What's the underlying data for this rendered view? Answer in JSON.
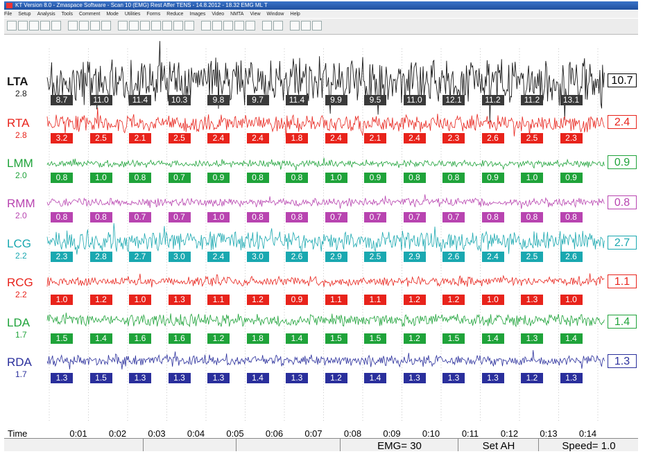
{
  "window": {
    "title": "KT Version 8.0 - Zmaspace Software - Scan 10 (EMG) Rest Affer TENS - 14.8.2012 - 18.32 EMG ML T"
  },
  "menu": [
    "File",
    "Setup",
    "Analysis",
    "Tools",
    "Comment",
    "Mode",
    "Utilities",
    "Forms",
    "Reduce",
    "Images",
    "Video",
    "NMTA",
    "View",
    "Window",
    "Help"
  ],
  "toolbar": {
    "icons": [
      "new-icon",
      "open-icon",
      "save-icon",
      "arrow-down-icon",
      "arrow-up-icon",
      "scan-icon",
      "compare-icon",
      "grid-icon",
      "table-icon",
      "wave-icon",
      "check-icon",
      "image-icon",
      "edit-icon",
      "print-icon",
      "disk-icon",
      "person-icon",
      "chart-a-icon",
      "chart-b-icon",
      "chart-c-icon",
      "chart-d-icon",
      "printer-icon",
      "layout-a-icon",
      "layout-b-icon",
      "cursor-icon",
      "split-icon",
      "columns-icon"
    ]
  },
  "channels": [
    {
      "name": "LTA",
      "base": "2.8",
      "color": "#1a1a1a",
      "current": "10.7",
      "values": [
        "8.7",
        "11.0",
        "11.4",
        "10.3",
        "9.8",
        "9.7",
        "11.4",
        "9.9",
        "9.5",
        "11.0",
        "12.1",
        "11.2",
        "11.2",
        "13.1"
      ]
    },
    {
      "name": "RTA",
      "base": "2.8",
      "color": "#e8231b",
      "current": "2.4",
      "values": [
        "3.2",
        "2.5",
        "2.1",
        "2.5",
        "2.4",
        "2.4",
        "1.8",
        "2.4",
        "2.1",
        "2.4",
        "2.3",
        "2.6",
        "2.5",
        "2.3"
      ]
    },
    {
      "name": "LMM",
      "base": "2.0",
      "color": "#1fa33a",
      "current": "0.9",
      "values": [
        "0.8",
        "1.0",
        "0.8",
        "0.7",
        "0.9",
        "0.8",
        "0.8",
        "1.0",
        "0.9",
        "0.8",
        "0.8",
        "0.9",
        "1.0",
        "0.9"
      ]
    },
    {
      "name": "RMM",
      "base": "2.0",
      "color": "#b844b0",
      "current": "0.8",
      "values": [
        "0.8",
        "0.8",
        "0.7",
        "0.7",
        "1.0",
        "0.8",
        "0.8",
        "0.7",
        "0.7",
        "0.7",
        "0.7",
        "0.8",
        "0.8",
        "0.8"
      ]
    },
    {
      "name": "LCG",
      "base": "2.2",
      "color": "#1aa8b0",
      "current": "2.7",
      "values": [
        "2.3",
        "2.8",
        "2.7",
        "3.0",
        "2.4",
        "3.0",
        "2.6",
        "2.9",
        "2.5",
        "2.9",
        "2.6",
        "2.4",
        "2.5",
        "2.6"
      ]
    },
    {
      "name": "RCG",
      "base": "2.2",
      "color": "#e8231b",
      "current": "1.1",
      "values": [
        "1.0",
        "1.2",
        "1.0",
        "1.3",
        "1.1",
        "1.2",
        "0.9",
        "1.1",
        "1.1",
        "1.2",
        "1.2",
        "1.0",
        "1.3",
        "1.0"
      ]
    },
    {
      "name": "LDA",
      "base": "1.7",
      "color": "#1fa33a",
      "current": "1.4",
      "values": [
        "1.5",
        "1.4",
        "1.6",
        "1.6",
        "1.2",
        "1.8",
        "1.4",
        "1.5",
        "1.5",
        "1.2",
        "1.5",
        "1.4",
        "1.3",
        "1.4"
      ]
    },
    {
      "name": "RDA",
      "base": "1.7",
      "color": "#2a2f9c",
      "current": "1.3",
      "values": [
        "1.3",
        "1.5",
        "1.3",
        "1.3",
        "1.3",
        "1.4",
        "1.3",
        "1.2",
        "1.4",
        "1.3",
        "1.3",
        "1.3",
        "1.2",
        "1.3"
      ]
    }
  ],
  "time_axis": {
    "label": "Time",
    "ticks": [
      "0:01",
      "0:02",
      "0:03",
      "0:04",
      "0:05",
      "0:06",
      "0:07",
      "0:08",
      "0:09",
      "0:10",
      "0:11",
      "0:12",
      "0:13",
      "0:14"
    ]
  },
  "status": {
    "emg": "EMG= 30",
    "set": "Set AH",
    "speed": "Speed= 1.0"
  }
}
